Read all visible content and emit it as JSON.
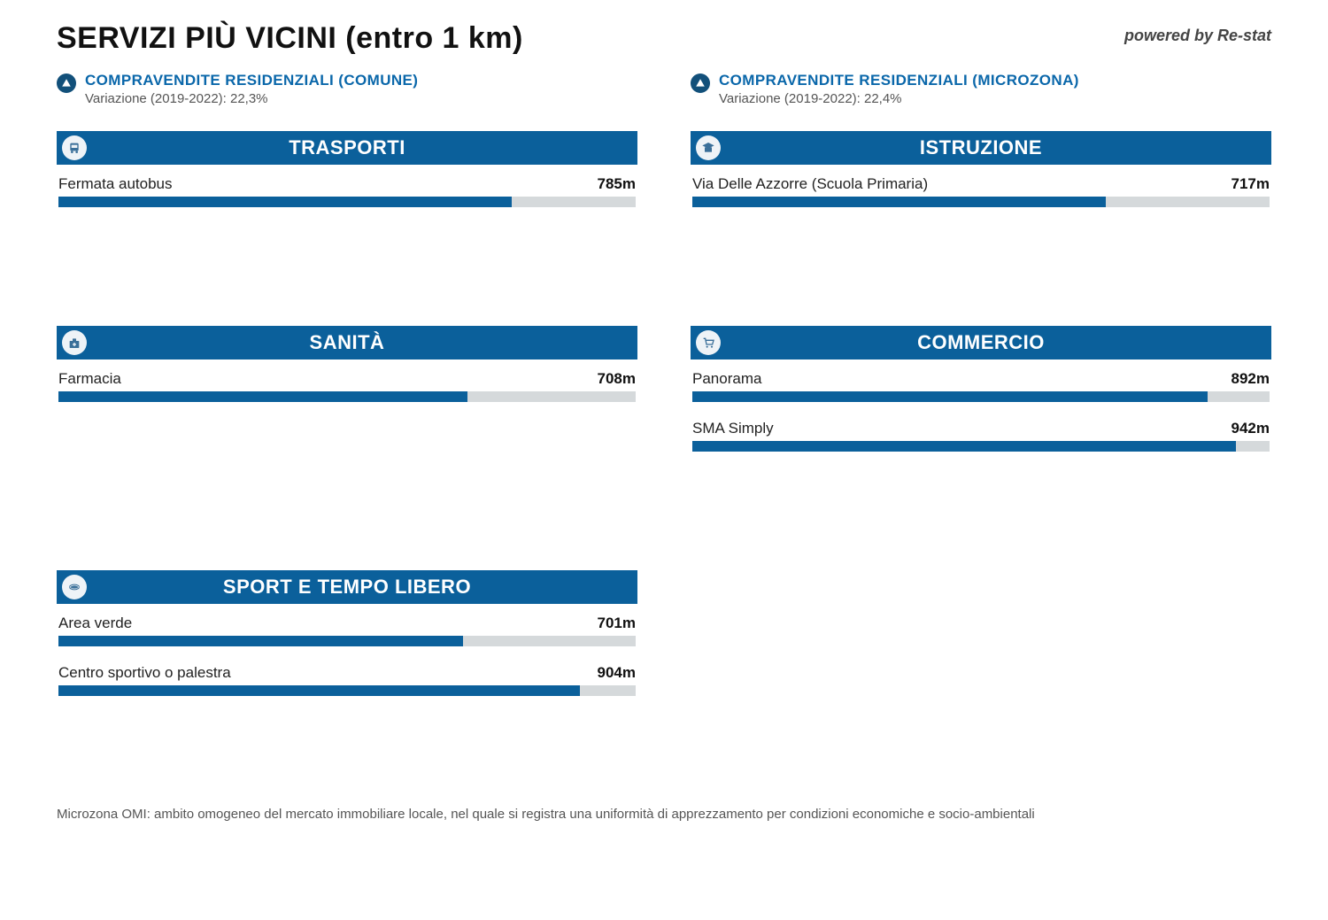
{
  "colors": {
    "brand": "#0b609b",
    "brand_dark": "#12507a",
    "link": "#0a67aa",
    "track": "#d5d9db",
    "icon_circle_bg": "#eef3f7",
    "text": "#222222",
    "muted": "#555555",
    "background": "#ffffff"
  },
  "header": {
    "title": "SERVIZI PIÙ VICINI (entro 1 km)",
    "powered_by": "powered by Re-stat"
  },
  "stats": [
    {
      "title": "COMPRAVENDITE RESIDENZIALI (COMUNE)",
      "subtitle": "Variazione (2019-2022): 22,3%"
    },
    {
      "title": "COMPRAVENDITE RESIDENZIALI (MICROZONA)",
      "subtitle": "Variazione (2019-2022): 22,4%"
    }
  ],
  "max_distance_m": 1000,
  "categories": [
    {
      "key": "trasporti",
      "title": "TRASPORTI",
      "icon": "bus",
      "items": [
        {
          "label": "Fermata autobus",
          "distance_label": "785m",
          "distance_m": 785
        }
      ]
    },
    {
      "key": "istruzione",
      "title": "ISTRUZIONE",
      "icon": "school",
      "items": [
        {
          "label": "Via Delle Azzorre (Scuola Primaria)",
          "distance_label": "717m",
          "distance_m": 717
        }
      ]
    },
    {
      "key": "sanita",
      "title": "SANITÀ",
      "icon": "health",
      "items": [
        {
          "label": "Farmacia",
          "distance_label": "708m",
          "distance_m": 708
        }
      ]
    },
    {
      "key": "commercio",
      "title": "COMMERCIO",
      "icon": "cart",
      "items": [
        {
          "label": "Panorama",
          "distance_label": "892m",
          "distance_m": 892
        },
        {
          "label": "SMA Simply",
          "distance_label": "942m",
          "distance_m": 942
        }
      ]
    },
    {
      "key": "sport",
      "title": "SPORT E TEMPO LIBERO",
      "icon": "sport",
      "items": [
        {
          "label": "Area verde",
          "distance_label": "701m",
          "distance_m": 701
        },
        {
          "label": "Centro sportivo o palestra",
          "distance_label": "904m",
          "distance_m": 904
        }
      ]
    }
  ],
  "footnote": "Microzona OMI: ambito omogeneo del mercato immobiliare locale, nel quale si registra una uniformità di apprezzamento per condizioni economiche e socio-ambientali"
}
